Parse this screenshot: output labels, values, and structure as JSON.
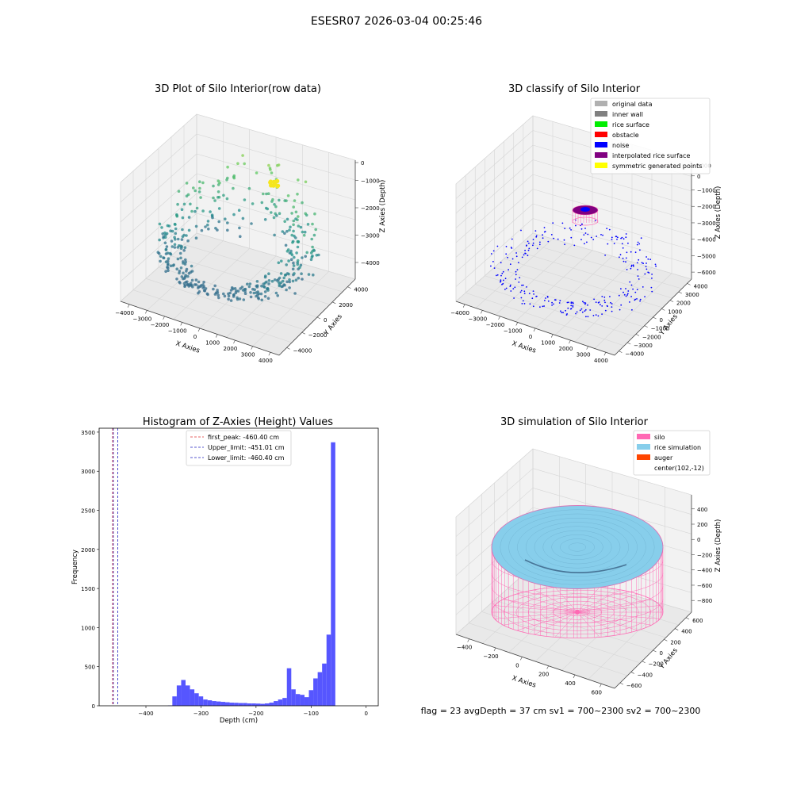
{
  "figure": {
    "suptitle": "ESESR07 2026-03-04 00:25:46",
    "footer": "flag = 23   avgDepth = 37 cm     sv1 = 700~2300  sv2 = 700~2300"
  },
  "colors": {
    "hist_bar": "#4d4dff",
    "first_peak": "#e03030",
    "limit_lines": "#2020c0",
    "silo": "#ff69b4",
    "rice_simulation": "#87ceeb",
    "auger": "#ff4500",
    "inner_wall": "#808080",
    "original": "#b0b0b0",
    "rice_surface": "#00ee00",
    "obstacle": "#ff0000",
    "noise": "#0000ff",
    "interpolated": "#800080",
    "symmetric": "#ffff00"
  },
  "chart_data": [
    {
      "type": "scatter",
      "subtype": "3d",
      "title": "3D Plot of Silo Interior(row data)",
      "xlabel": "X Axies",
      "ylabel": "Y Axies",
      "zlabel": "Z Axies (Depth)",
      "x_ticks": [
        "−4000",
        "−3000",
        "−2000",
        "−1000",
        "0",
        "1000",
        "2000",
        "3000",
        "4000"
      ],
      "y_ticks": [
        "−4000",
        "−2000",
        "0",
        "2000",
        "4000"
      ],
      "z_ticks": [
        "−4000",
        "−3000",
        "−2000",
        "−1000",
        "0"
      ],
      "xlim": [
        -4500,
        4500
      ],
      "ylim": [
        -4500,
        4500
      ],
      "zlim": [
        -4500,
        0
      ],
      "colormap": "viridis",
      "point_count_estimate": 420
    },
    {
      "type": "scatter",
      "subtype": "3d",
      "title": "3D classify of Silo Interior",
      "xlabel": "X Axies",
      "ylabel": "Y Axies",
      "zlabel": "Z Axies (Depth)",
      "x_ticks": [
        "−4000",
        "−3000",
        "−2000",
        "−1000",
        "0",
        "1000",
        "2000",
        "3000",
        "4000"
      ],
      "y_ticks": [
        "−4000",
        "−3000",
        "−2000",
        "−1000",
        "0",
        "1000",
        "2000",
        "3000",
        "4000"
      ],
      "z_ticks": [
        "−6000",
        "−5000",
        "−4000",
        "−3000",
        "−2000",
        "−1000",
        "0",
        "1000"
      ],
      "legend": [
        "original data",
        "inner wall",
        "rice surface",
        "obstacle",
        "noise",
        "interpolated rice surface",
        "symmetric generated points"
      ],
      "legend_loc": "upper right"
    },
    {
      "type": "bar",
      "subtype": "histogram",
      "title": "Histogram of Z-Axies (Height) Values",
      "xlabel": "Depth (cm)",
      "ylabel": "Frequency",
      "xlim": [
        -485,
        22
      ],
      "ylim": [
        0,
        3550
      ],
      "x_ticks": [
        -400,
        -300,
        -200,
        -100,
        0
      ],
      "x_tick_labels": [
        "−400",
        "−300",
        "−200",
        "−100",
        "0"
      ],
      "y_ticks": [
        0,
        500,
        1000,
        1500,
        2000,
        2500,
        3000,
        3500
      ],
      "bin_edges_start": -360,
      "bin_width": 8,
      "values": [
        5,
        120,
        260,
        330,
        260,
        210,
        160,
        120,
        80,
        70,
        60,
        55,
        50,
        45,
        40,
        38,
        35,
        35,
        30,
        30,
        28,
        25,
        30,
        40,
        60,
        80,
        100,
        480,
        210,
        150,
        140,
        110,
        200,
        350,
        430,
        540,
        910,
        3370
      ],
      "vlines": [
        {
          "x": -460.4,
          "label": "first_peak: -460.40 cm",
          "color_key": "first_peak"
        },
        {
          "x": -451.01,
          "label": "Upper_limit: -451.01 cm",
          "color_key": "limit_lines"
        },
        {
          "x": -460.4,
          "label": "Lower_limit: -460.40 cm",
          "color_key": "limit_lines"
        }
      ],
      "legend_loc": "upper center"
    },
    {
      "type": "surface",
      "subtype": "3d",
      "title": "3D simulation of Silo Interior",
      "xlabel": "X Axies",
      "ylabel": "Y Axies",
      "zlabel": "Z Axies (Depth)",
      "x_ticks": [
        "−400",
        "−200",
        "0",
        "200",
        "400",
        "600"
      ],
      "y_ticks": [
        "−600",
        "−400",
        "−200",
        "0",
        "200",
        "400",
        "600"
      ],
      "z_ticks": [
        "−800",
        "−600",
        "−400",
        "−200",
        "0",
        "200",
        "400"
      ],
      "legend": [
        "silo",
        "rice simulation",
        "auger",
        "center(102,-12)"
      ],
      "legend_loc": "upper right"
    }
  ]
}
